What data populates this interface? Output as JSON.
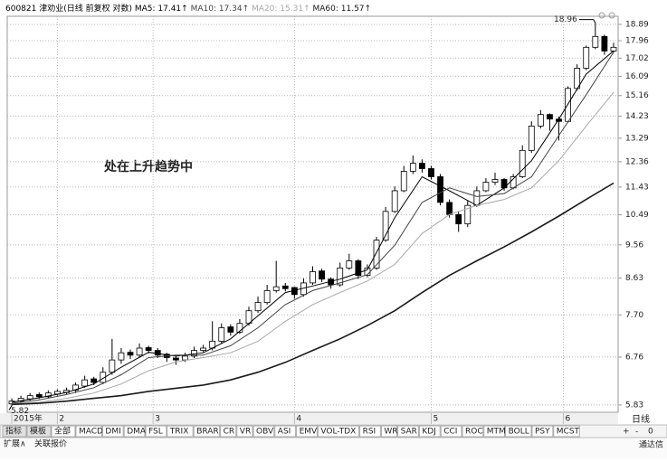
{
  "chart_data": {
    "type": "candlestick",
    "header": "600821 津劝业(日线 前复权 对数)",
    "annotation": "处在上升趋势中",
    "period_label": "日线",
    "high_label": 18.96,
    "low_label": 5.82,
    "log_y": true,
    "grid": true,
    "ylim": [
      5.7,
      19.37
    ],
    "yticks": [
      18.89,
      17.96,
      17.02,
      16.09,
      15.16,
      14.23,
      13.29,
      12.36,
      11.43,
      10.49,
      9.56,
      8.63,
      {
        "value": 7.7,
        "label": "7.70"
      },
      6.76,
      5.83
    ],
    "xlim": [
      -0.5,
      66.5
    ],
    "xticks": [
      {
        "value": 0,
        "label": "2015年"
      },
      {
        "value": 5,
        "label": "2"
      },
      {
        "value": 15.5,
        "label": "3"
      },
      {
        "value": 31,
        "label": "4"
      },
      {
        "value": 46,
        "label": "5"
      },
      {
        "value": 60.5,
        "label": "6"
      }
    ],
    "up_color": "#ffffff",
    "down_color": "#000000",
    "candles": {
      "open": [
        5.85,
        5.9,
        5.94,
        6.02,
        5.98,
        6.03,
        6.06,
        6.1,
        6.18,
        6.32,
        6.25,
        6.45,
        6.7,
        6.86,
        6.8,
        6.96,
        6.9,
        6.82,
        6.74,
        6.7,
        6.78,
        6.9,
        6.95,
        7.1,
        7.42,
        7.3,
        7.5,
        7.8,
        8.0,
        8.3,
        8.42,
        8.38,
        8.2,
        8.5,
        8.82,
        8.6,
        8.45,
        8.9,
        9.1,
        8.7,
        8.9,
        9.7,
        10.6,
        11.3,
        12.0,
        12.3,
        12.1,
        11.8,
        10.9,
        10.5,
        10.2,
        10.8,
        11.3,
        11.6,
        11.7,
        11.4,
        11.8,
        12.8,
        13.8,
        14.3,
        14.1,
        14.0,
        15.5,
        16.5,
        17.6,
        18.2,
        17.4
      ],
      "high": [
        5.95,
        6.0,
        6.05,
        6.06,
        6.1,
        6.12,
        6.15,
        6.25,
        6.38,
        6.36,
        6.55,
        7.15,
        6.95,
        6.92,
        7.05,
        7.0,
        6.95,
        6.85,
        6.8,
        6.85,
        6.98,
        7.02,
        7.55,
        7.5,
        7.48,
        7.6,
        7.9,
        8.15,
        8.45,
        9.1,
        8.5,
        8.4,
        8.62,
        8.95,
        8.88,
        8.65,
        9.05,
        9.3,
        9.15,
        9.0,
        9.8,
        10.75,
        11.45,
        12.2,
        12.6,
        12.45,
        12.2,
        11.9,
        11.0,
        10.6,
        10.95,
        11.45,
        11.75,
        11.95,
        11.75,
        11.9,
        13.0,
        14.0,
        14.5,
        14.35,
        14.2,
        15.6,
        16.7,
        17.7,
        18.96,
        18.3,
        17.85
      ],
      "low": [
        5.82,
        5.86,
        5.9,
        5.94,
        5.95,
        6.0,
        6.02,
        6.05,
        6.15,
        6.2,
        6.22,
        6.4,
        6.62,
        6.72,
        6.75,
        6.84,
        6.74,
        6.66,
        6.6,
        6.66,
        6.74,
        6.86,
        6.9,
        7.05,
        7.22,
        7.26,
        7.45,
        7.75,
        7.95,
        8.25,
        8.28,
        8.1,
        8.15,
        8.45,
        8.52,
        8.35,
        8.4,
        8.85,
        8.6,
        8.65,
        8.85,
        9.65,
        10.55,
        11.25,
        11.9,
        11.95,
        11.7,
        10.8,
        10.4,
        9.95,
        10.1,
        10.75,
        11.25,
        11.5,
        11.3,
        11.35,
        11.75,
        12.7,
        13.7,
        13.6,
        13.2,
        13.95,
        15.4,
        16.4,
        17.5,
        17.2,
        17.3
      ],
      "close": [
        5.9,
        5.95,
        6.0,
        5.98,
        6.05,
        6.08,
        6.1,
        6.2,
        6.3,
        6.25,
        6.45,
        6.7,
        6.85,
        6.8,
        6.95,
        6.9,
        6.8,
        6.75,
        6.7,
        6.78,
        6.9,
        6.95,
        7.1,
        7.4,
        7.3,
        7.5,
        7.8,
        8.0,
        8.3,
        8.4,
        8.35,
        8.2,
        8.5,
        8.8,
        8.6,
        8.45,
        8.9,
        9.1,
        8.7,
        8.9,
        9.7,
        10.6,
        11.3,
        12.0,
        12.3,
        12.1,
        11.8,
        10.9,
        10.5,
        10.2,
        10.8,
        11.3,
        11.6,
        11.7,
        11.4,
        11.8,
        12.8,
        13.8,
        14.3,
        14.1,
        14.0,
        15.5,
        16.5,
        17.6,
        18.2,
        17.4,
        17.6
      ]
    },
    "series": [
      {
        "name": "MA5: 17.41↑",
        "color": "#000000",
        "width": 1,
        "x": [
          0,
          3,
          6,
          9,
          12,
          15,
          18,
          21,
          24,
          27,
          30,
          33,
          36,
          39,
          42,
          45,
          48,
          51,
          54,
          57,
          60,
          63,
          66
        ],
        "values": [
          5.88,
          5.96,
          6.06,
          6.22,
          6.55,
          6.86,
          6.78,
          6.85,
          7.15,
          7.68,
          8.25,
          8.42,
          8.6,
          8.85,
          10.4,
          11.8,
          11.3,
          10.8,
          11.4,
          12.4,
          14.1,
          16.2,
          17.41
        ]
      },
      {
        "name": "MA10: 17.34↑",
        "color": "#444444",
        "width": 1,
        "x": [
          0,
          3,
          6,
          9,
          12,
          15,
          18,
          21,
          24,
          27,
          30,
          33,
          36,
          39,
          42,
          45,
          48,
          51,
          54,
          57,
          60,
          63,
          66
        ],
        "values": [
          5.86,
          5.92,
          6.02,
          6.15,
          6.4,
          6.75,
          6.8,
          6.8,
          7.0,
          7.4,
          7.95,
          8.3,
          8.5,
          8.72,
          9.55,
          10.9,
          11.4,
          11.1,
          11.2,
          11.8,
          13.4,
          15.2,
          17.34
        ]
      },
      {
        "name": "MA20: 15.31↑",
        "color": "#a8a8a8",
        "width": 1,
        "x": [
          0,
          3,
          6,
          9,
          12,
          15,
          18,
          21,
          24,
          27,
          30,
          33,
          36,
          39,
          42,
          45,
          48,
          51,
          54,
          57,
          60,
          63,
          66
        ],
        "values": [
          5.85,
          5.88,
          5.95,
          6.05,
          6.22,
          6.48,
          6.66,
          6.75,
          6.85,
          7.1,
          7.55,
          7.95,
          8.25,
          8.55,
          9.0,
          9.9,
          10.5,
          10.8,
          11.0,
          11.4,
          12.4,
          13.8,
          15.31
        ]
      },
      {
        "name": "MA60: 11.57↑",
        "color": "#1a1a1a",
        "width": 1.6,
        "x": [
          0,
          3,
          6,
          9,
          12,
          15,
          18,
          21,
          24,
          27,
          30,
          33,
          36,
          39,
          42,
          45,
          48,
          51,
          54,
          57,
          60,
          63,
          66
        ],
        "values": [
          5.84,
          5.86,
          5.9,
          5.95,
          6.0,
          6.08,
          6.14,
          6.2,
          6.3,
          6.45,
          6.65,
          6.9,
          7.15,
          7.45,
          7.8,
          8.25,
          8.7,
          9.1,
          9.5,
          9.95,
          10.45,
          11.0,
          11.57
        ]
      }
    ]
  },
  "toolbar": {
    "tabs": [
      "指标",
      "模板",
      "全部",
      "MACD",
      "DMI",
      "DMA",
      "FSL",
      "TRIX",
      "BRAR",
      "CR",
      "VR",
      "OBV",
      "ASI",
      "EMV",
      "VOL-TDX",
      "RSI",
      "WR",
      "SAR",
      "KDJ",
      "CCI",
      "ROC",
      "MTM",
      "BOLL",
      "PSY",
      "MCST"
    ],
    "controls": [
      "+",
      "-",
      "0"
    ],
    "bottom_left": [
      "扩展∧",
      "关联报价"
    ],
    "brand": "通达信"
  }
}
